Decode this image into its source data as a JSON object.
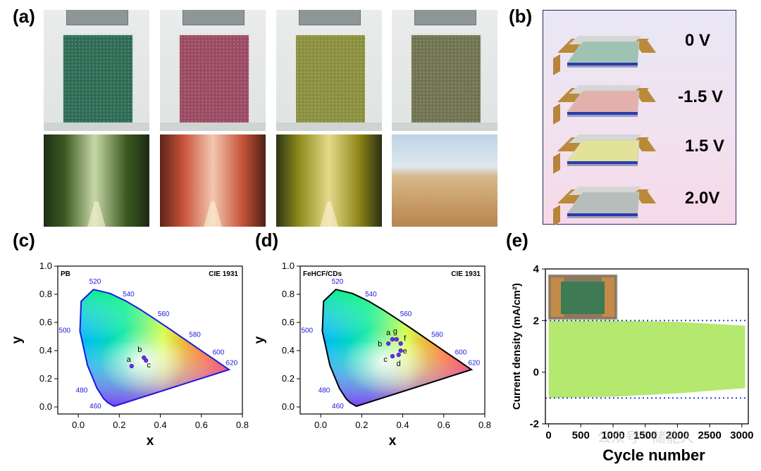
{
  "panels": {
    "a": "(a)",
    "b": "(b)",
    "c": "(c)",
    "d": "(d)",
    "e": "(e)"
  },
  "voltages": [
    "0 V",
    "-1.5 V",
    "1.5 V",
    "2.0V"
  ],
  "photos": {
    "beaker_colors": [
      "#2e6b55",
      "#9a4a62",
      "#8a8f3e",
      "#6f7350"
    ],
    "scenes": [
      "green-forest",
      "red-autumn-forest",
      "yellow-forest",
      "desert"
    ]
  },
  "device_colors": [
    "#9fc3b3",
    "#e3b0ab",
    "#e2e29a",
    "#b6bdbb"
  ],
  "cie_common": {
    "standard": "CIE 1931",
    "xlabel": "x",
    "ylabel": "y",
    "xticks": [
      "0.0",
      "0.2",
      "0.4",
      "0.6",
      "0.8"
    ],
    "yticks": [
      "0.0",
      "0.2",
      "0.4",
      "0.6",
      "0.8",
      "1.0"
    ],
    "wavelengths": [
      "460",
      "480",
      "500",
      "520",
      "540",
      "560",
      "580",
      "600",
      "620"
    ]
  },
  "chart_data": [
    {
      "type": "scatter",
      "panel": "c",
      "title": "PB",
      "xlabel": "x",
      "ylabel": "y",
      "xlim": [
        -0.1,
        0.8
      ],
      "ylim": [
        -0.05,
        1.0
      ],
      "points": [
        {
          "label": "a",
          "x": 0.26,
          "y": 0.29
        },
        {
          "label": "b",
          "x": 0.32,
          "y": 0.35
        },
        {
          "label": "c",
          "x": 0.33,
          "y": 0.33
        }
      ]
    },
    {
      "type": "scatter",
      "panel": "d",
      "title": "FeHCF/CDs",
      "xlabel": "x",
      "ylabel": "y",
      "xlim": [
        -0.1,
        0.8
      ],
      "ylim": [
        -0.05,
        1.0
      ],
      "points": [
        {
          "label": "a",
          "x": 0.35,
          "y": 0.48
        },
        {
          "label": "b",
          "x": 0.33,
          "y": 0.45
        },
        {
          "label": "c",
          "x": 0.35,
          "y": 0.36
        },
        {
          "label": "d",
          "x": 0.38,
          "y": 0.37
        },
        {
          "label": "e",
          "x": 0.39,
          "y": 0.4
        },
        {
          "label": "f",
          "x": 0.39,
          "y": 0.45
        },
        {
          "label": "g",
          "x": 0.37,
          "y": 0.48
        }
      ]
    },
    {
      "type": "area",
      "panel": "e",
      "xlabel": "Cycle number",
      "ylabel": "Current density (mA/cm²)",
      "xticks": [
        "0",
        "500",
        "1000",
        "1500",
        "2000",
        "2500",
        "3000"
      ],
      "yticks": [
        "-2",
        "0",
        "2",
        "4"
      ],
      "xlim": [
        -50,
        3100
      ],
      "ylim": [
        -2,
        4
      ],
      "reference_lines": [
        2,
        -1
      ],
      "upper": {
        "x": [
          0,
          1000,
          2000,
          2500,
          3050
        ],
        "y": [
          2.0,
          2.0,
          1.95,
          1.88,
          1.8
        ]
      },
      "lower": {
        "x": [
          0,
          1000,
          2000,
          2500,
          3050
        ],
        "y": [
          -1.0,
          -0.95,
          -0.82,
          -0.72,
          -0.62
        ]
      },
      "fill_color": "#b5e86e"
    }
  ],
  "watermark": "公众号 · 储能人"
}
